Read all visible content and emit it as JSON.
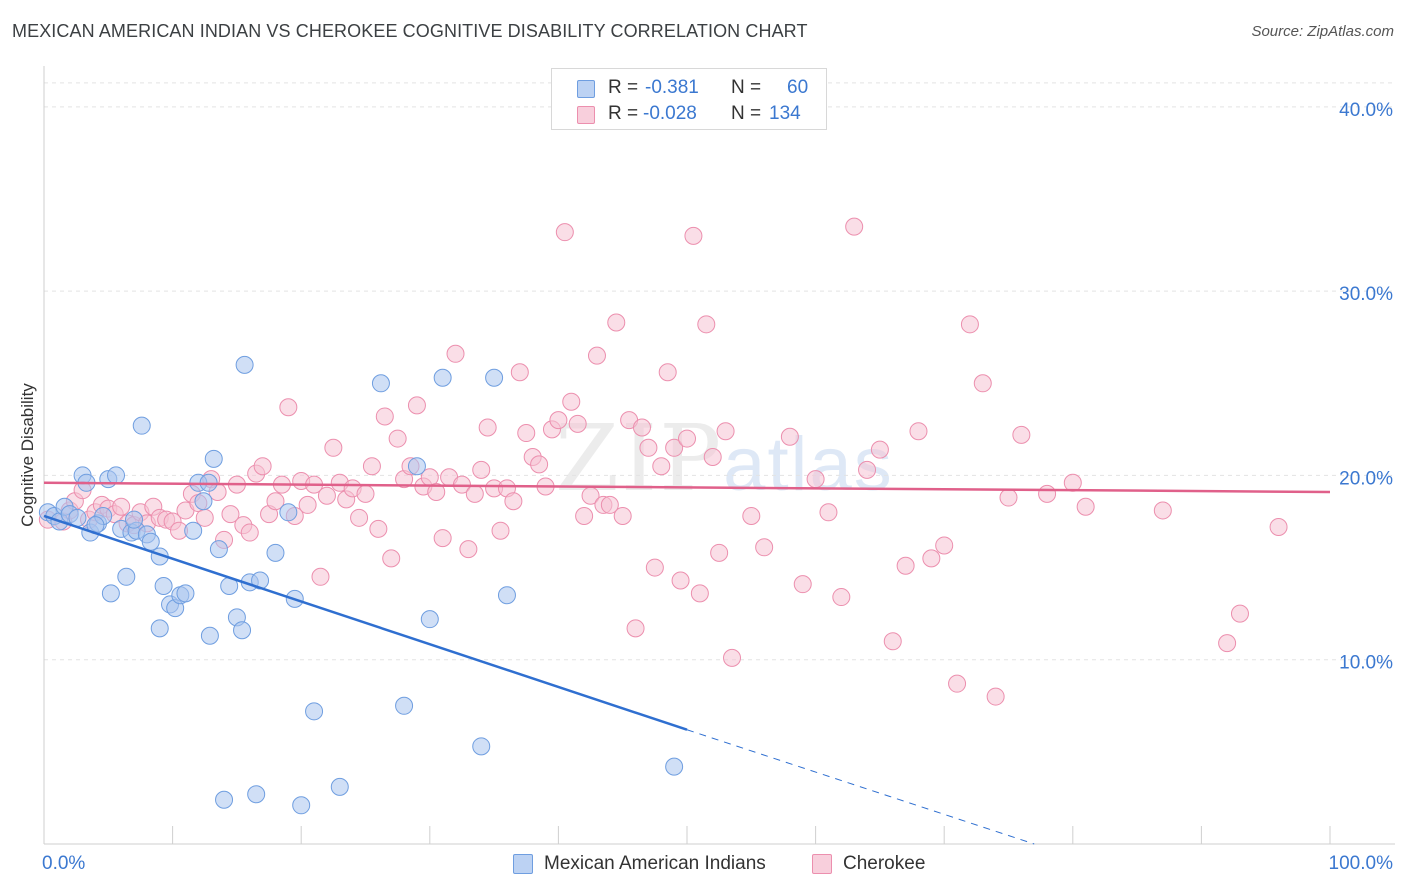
{
  "header": {
    "title": "MEXICAN AMERICAN INDIAN VS CHEROKEE COGNITIVE DISABILITY CORRELATION CHART",
    "source": "Source: ZipAtlas.com"
  },
  "watermark": {
    "zip": "ZIP",
    "atlas": "atlas"
  },
  "legend": {
    "rows": [
      {
        "r_label": "R =",
        "r_value": "-0.381",
        "n_label": "N =",
        "n_value": "60",
        "color": "#a9c4ee"
      },
      {
        "r_label": "R =",
        "r_value": "-0.028",
        "n_label": "N =",
        "n_value": "134",
        "color": "#f4b8cb"
      }
    ]
  },
  "bottom_legend": {
    "series1": "Mexican American Indians",
    "series2": "Cherokee"
  },
  "colors": {
    "blue_fill": "#a9c4ee",
    "blue_stroke": "#6f9ee0",
    "blue_line": "#2f6fd0",
    "pink_fill": "#f6c3d3",
    "pink_stroke": "#ec8fae",
    "pink_line": "#e0608a",
    "axis_label": "#3b78d0",
    "grid": "#e3e3e3"
  },
  "chart_data": {
    "type": "scatter",
    "title": "MEXICAN AMERICAN INDIAN VS CHEROKEE COGNITIVE DISABILITY CORRELATION CHART",
    "xlabel": "",
    "ylabel": "Cognitive Disability",
    "xlim": [
      0,
      100
    ],
    "ylim": [
      0,
      42
    ],
    "x_ticks_labeled": [
      "0.0%",
      "100.0%"
    ],
    "y_ticks": [
      10,
      20,
      30,
      40
    ],
    "y_tick_labels": [
      "10.0%",
      "20.0%",
      "30.0%",
      "40.0%"
    ],
    "grid": true,
    "legend_position": "top-center",
    "series": [
      {
        "name": "Mexican American Indians",
        "R": -0.381,
        "N": 60,
        "trend": {
          "x0": 0,
          "y0": 17.8,
          "x1": 50,
          "y1": 6.2,
          "dashed_to_x": 77,
          "dashed_to_y": 0
        },
        "points": [
          [
            0.3,
            18.0
          ],
          [
            0.8,
            17.8
          ],
          [
            1.2,
            17.5
          ],
          [
            1.6,
            18.3
          ],
          [
            2.0,
            17.9
          ],
          [
            2.6,
            17.7
          ],
          [
            3.0,
            20.0
          ],
          [
            3.3,
            19.6
          ],
          [
            3.6,
            16.9
          ],
          [
            4.2,
            17.4
          ],
          [
            4.6,
            17.8
          ],
          [
            5.0,
            19.8
          ],
          [
            5.6,
            20.0
          ],
          [
            6.0,
            17.1
          ],
          [
            6.4,
            14.5
          ],
          [
            6.8,
            16.9
          ],
          [
            7.2,
            17.0
          ],
          [
            7.6,
            22.7
          ],
          [
            8.0,
            16.8
          ],
          [
            8.3,
            16.4
          ],
          [
            9.0,
            15.6
          ],
          [
            9.3,
            14.0
          ],
          [
            9.8,
            13.0
          ],
          [
            10.2,
            12.8
          ],
          [
            10.6,
            13.5
          ],
          [
            11.0,
            13.6
          ],
          [
            9.0,
            11.7
          ],
          [
            11.6,
            17.0
          ],
          [
            12.0,
            19.6
          ],
          [
            12.4,
            18.6
          ],
          [
            12.8,
            19.6
          ],
          [
            12.9,
            11.3
          ],
          [
            13.2,
            20.9
          ],
          [
            13.6,
            16.0
          ],
          [
            14.0,
            2.4
          ],
          [
            14.4,
            14.0
          ],
          [
            15.0,
            12.3
          ],
          [
            15.4,
            11.6
          ],
          [
            15.6,
            26.0
          ],
          [
            16.0,
            14.2
          ],
          [
            16.5,
            2.7
          ],
          [
            16.8,
            14.3
          ],
          [
            18.0,
            15.8
          ],
          [
            19.0,
            18.0
          ],
          [
            19.5,
            13.3
          ],
          [
            20.0,
            2.1
          ],
          [
            21.0,
            7.2
          ],
          [
            23.0,
            3.1
          ],
          [
            28.0,
            7.5
          ],
          [
            26.2,
            25.0
          ],
          [
            29.0,
            20.5
          ],
          [
            31.0,
            25.3
          ],
          [
            30.0,
            12.2
          ],
          [
            34.0,
            5.3
          ],
          [
            35.0,
            25.3
          ],
          [
            36.0,
            13.5
          ],
          [
            49.0,
            4.2
          ],
          [
            5.2,
            13.6
          ],
          [
            7.0,
            17.6
          ],
          [
            4.0,
            17.3
          ]
        ]
      },
      {
        "name": "Cherokee",
        "R": -0.028,
        "N": 134,
        "trend": {
          "x0": 0,
          "y0": 19.6,
          "x1": 100,
          "y1": 19.1
        },
        "points": [
          [
            0.3,
            17.6
          ],
          [
            1.5,
            17.5
          ],
          [
            2.0,
            18.1
          ],
          [
            2.4,
            18.6
          ],
          [
            3.0,
            19.2
          ],
          [
            3.5,
            17.6
          ],
          [
            4.0,
            18.0
          ],
          [
            4.5,
            18.4
          ],
          [
            5.0,
            18.2
          ],
          [
            5.5,
            17.9
          ],
          [
            6.0,
            18.3
          ],
          [
            6.5,
            17.4
          ],
          [
            7.0,
            17.3
          ],
          [
            7.5,
            18.0
          ],
          [
            8.0,
            17.4
          ],
          [
            8.5,
            18.3
          ],
          [
            9.0,
            17.7
          ],
          [
            9.5,
            17.6
          ],
          [
            10.0,
            17.5
          ],
          [
            10.5,
            17.0
          ],
          [
            11.0,
            18.1
          ],
          [
            11.5,
            19.0
          ],
          [
            12.0,
            18.5
          ],
          [
            12.5,
            17.7
          ],
          [
            13.0,
            19.8
          ],
          [
            13.5,
            19.1
          ],
          [
            14.0,
            16.5
          ],
          [
            14.5,
            17.9
          ],
          [
            15.0,
            19.5
          ],
          [
            15.5,
            17.3
          ],
          [
            16.0,
            16.9
          ],
          [
            16.5,
            20.1
          ],
          [
            17.0,
            20.5
          ],
          [
            17.5,
            17.9
          ],
          [
            18.0,
            18.6
          ],
          [
            18.5,
            19.5
          ],
          [
            19.0,
            23.7
          ],
          [
            19.5,
            17.8
          ],
          [
            20.0,
            19.7
          ],
          [
            20.5,
            18.4
          ],
          [
            21.0,
            19.5
          ],
          [
            21.5,
            14.5
          ],
          [
            22.0,
            18.9
          ],
          [
            22.5,
            21.5
          ],
          [
            23.0,
            19.6
          ],
          [
            23.5,
            18.7
          ],
          [
            24.0,
            19.3
          ],
          [
            24.5,
            17.7
          ],
          [
            25.0,
            19.0
          ],
          [
            25.5,
            20.5
          ],
          [
            26.0,
            17.1
          ],
          [
            26.5,
            23.2
          ],
          [
            27.0,
            15.5
          ],
          [
            27.5,
            22.0
          ],
          [
            28.0,
            19.8
          ],
          [
            28.5,
            20.5
          ],
          [
            29.0,
            23.8
          ],
          [
            29.5,
            19.4
          ],
          [
            30.0,
            19.9
          ],
          [
            30.5,
            19.1
          ],
          [
            31.0,
            16.6
          ],
          [
            31.5,
            19.9
          ],
          [
            32.0,
            26.6
          ],
          [
            32.5,
            19.5
          ],
          [
            33.0,
            16.0
          ],
          [
            33.5,
            19.0
          ],
          [
            34.0,
            20.3
          ],
          [
            34.5,
            22.6
          ],
          [
            35.0,
            19.3
          ],
          [
            35.5,
            17.0
          ],
          [
            36.0,
            19.3
          ],
          [
            36.5,
            18.6
          ],
          [
            37.0,
            25.6
          ],
          [
            37.5,
            22.3
          ],
          [
            38.0,
            21.0
          ],
          [
            38.5,
            20.6
          ],
          [
            39.0,
            19.4
          ],
          [
            39.5,
            22.5
          ],
          [
            40.0,
            23.0
          ],
          [
            40.5,
            33.2
          ],
          [
            41.0,
            24.0
          ],
          [
            41.5,
            22.8
          ],
          [
            42.0,
            17.8
          ],
          [
            42.5,
            18.9
          ],
          [
            43.0,
            26.5
          ],
          [
            43.5,
            18.4
          ],
          [
            44.0,
            18.4
          ],
          [
            44.5,
            28.3
          ],
          [
            45.0,
            17.8
          ],
          [
            45.5,
            23.0
          ],
          [
            46.0,
            11.7
          ],
          [
            46.5,
            22.6
          ],
          [
            47.0,
            21.5
          ],
          [
            47.5,
            15.0
          ],
          [
            48.0,
            20.5
          ],
          [
            48.5,
            25.6
          ],
          [
            49.0,
            21.5
          ],
          [
            49.5,
            14.3
          ],
          [
            50.0,
            22.0
          ],
          [
            50.5,
            33.0
          ],
          [
            51.0,
            13.6
          ],
          [
            51.5,
            28.2
          ],
          [
            52.0,
            21.0
          ],
          [
            52.5,
            15.8
          ],
          [
            53.0,
            22.4
          ],
          [
            53.5,
            10.1
          ],
          [
            55.0,
            17.8
          ],
          [
            56.0,
            16.1
          ],
          [
            58.0,
            22.1
          ],
          [
            59.0,
            14.1
          ],
          [
            60.0,
            19.8
          ],
          [
            61.0,
            18.0
          ],
          [
            62.0,
            13.4
          ],
          [
            63.0,
            33.5
          ],
          [
            64.0,
            20.3
          ],
          [
            65.0,
            21.4
          ],
          [
            66.0,
            11.0
          ],
          [
            67.0,
            15.1
          ],
          [
            68.0,
            22.4
          ],
          [
            69.0,
            15.5
          ],
          [
            70.0,
            16.2
          ],
          [
            71.0,
            8.7
          ],
          [
            72.0,
            28.2
          ],
          [
            73.0,
            25.0
          ],
          [
            74.0,
            8.0
          ],
          [
            75.0,
            18.8
          ],
          [
            76.0,
            22.2
          ],
          [
            78.0,
            19.0
          ],
          [
            80.0,
            19.6
          ],
          [
            81.0,
            18.3
          ],
          [
            87.0,
            18.1
          ],
          [
            92.0,
            10.9
          ],
          [
            93.0,
            12.5
          ],
          [
            96.0,
            17.2
          ]
        ]
      }
    ]
  }
}
